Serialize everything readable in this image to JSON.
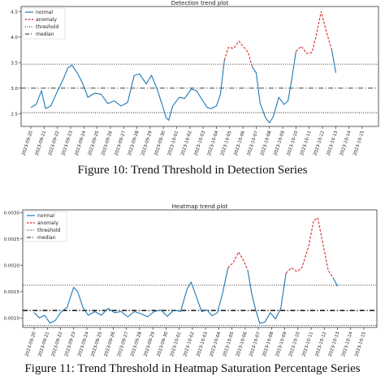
{
  "charts": [
    {
      "title": "Detection trend plot",
      "caption": "Figure 10: Trend Threshold in Detection Series",
      "legend": [
        "normal",
        "anomaly",
        "threshold",
        "median"
      ]
    },
    {
      "title": "Heatmap trend plot",
      "caption": "Figure 11: Trend Threshold in Heatmap Saturation Percentage Series",
      "legend": [
        "normal",
        "anomaly",
        "threshold",
        "median"
      ]
    }
  ],
  "colors": {
    "normal": "#1f77b4",
    "anomaly": "#d62728",
    "line": "#222222"
  },
  "chart_data": [
    {
      "type": "line",
      "title": "Detection trend plot",
      "x": [
        "2023-09-20",
        "2023-09-21",
        "2023-09-22",
        "2023-09-23",
        "2023-09-24",
        "2023-09-25",
        "2023-09-26",
        "2023-09-27",
        "2023-09-28",
        "2023-09-29",
        "2023-09-30",
        "2023-10-01",
        "2023-10-02",
        "2023-10-03",
        "2023-10-04",
        "2023-10-05",
        "2023-10-06",
        "2023-10-07",
        "2023-10-08",
        "2023-10-09",
        "2023-10-10",
        "2023-10-11",
        "2023-10-12",
        "2023-10-13",
        "2023-10-14",
        "2023-10-15"
      ],
      "ylim": [
        2.25,
        4.6
      ],
      "yticks": [
        2.5,
        3.0,
        3.5,
        4.0,
        4.5
      ],
      "ytick_labels": [
        "2.5",
        "3.0",
        "3.5",
        "4.0",
        "4.5"
      ],
      "threshold": [
        2.52,
        3.47
      ],
      "median": 3.0,
      "points": [
        [
          0.0,
          2.62
        ],
        [
          0.4,
          2.68
        ],
        [
          0.8,
          2.95
        ],
        [
          1.1,
          2.6
        ],
        [
          1.5,
          2.65
        ],
        [
          1.9,
          2.88
        ],
        [
          2.4,
          3.15
        ],
        [
          2.8,
          3.4
        ],
        [
          3.1,
          3.45
        ],
        [
          3.5,
          3.3
        ],
        [
          3.9,
          3.1
        ],
        [
          4.3,
          2.82
        ],
        [
          4.8,
          2.9
        ],
        [
          5.3,
          2.88
        ],
        [
          5.8,
          2.7
        ],
        [
          6.3,
          2.75
        ],
        [
          6.8,
          2.65
        ],
        [
          7.3,
          2.72
        ],
        [
          7.8,
          3.25
        ],
        [
          8.2,
          3.28
        ],
        [
          8.7,
          3.08
        ],
        [
          9.1,
          3.25
        ],
        [
          9.5,
          3.0
        ],
        [
          9.9,
          2.68
        ],
        [
          10.2,
          2.42
        ],
        [
          10.4,
          2.37
        ],
        [
          10.7,
          2.65
        ],
        [
          11.2,
          2.82
        ],
        [
          11.6,
          2.8
        ],
        [
          12.1,
          2.98
        ],
        [
          12.5,
          2.95
        ],
        [
          12.9,
          2.78
        ],
        [
          13.3,
          2.62
        ],
        [
          13.6,
          2.6
        ],
        [
          14.0,
          2.65
        ],
        [
          14.3,
          2.88
        ],
        [
          14.6,
          3.55
        ],
        [
          14.9,
          3.8
        ],
        [
          15.3,
          3.78
        ],
        [
          15.7,
          3.92
        ],
        [
          16.0,
          3.82
        ],
        [
          16.4,
          3.7
        ],
        [
          16.7,
          3.42
        ],
        [
          17.0,
          3.3
        ],
        [
          17.3,
          2.7
        ],
        [
          17.7,
          2.42
        ],
        [
          18.0,
          2.32
        ],
        [
          18.3,
          2.45
        ],
        [
          18.7,
          2.82
        ],
        [
          19.1,
          2.68
        ],
        [
          19.4,
          2.75
        ],
        [
          19.7,
          3.2
        ],
        [
          20.0,
          3.72
        ],
        [
          20.4,
          3.82
        ],
        [
          20.8,
          3.68
        ],
        [
          21.2,
          3.7
        ],
        [
          21.5,
          4.0
        ],
        [
          21.9,
          4.5
        ],
        [
          22.3,
          4.1
        ],
        [
          22.7,
          3.75
        ],
        [
          23.0,
          3.3
        ]
      ],
      "anomaly_ranges": [
        [
          14.6,
          16.7
        ],
        [
          20.0,
          22.7
        ]
      ]
    },
    {
      "type": "line",
      "title": "Heatmap trend plot",
      "x": [
        "2023-09-20",
        "2023-09-21",
        "2023-09-22",
        "2023-09-23",
        "2023-09-24",
        "2023-09-25",
        "2023-09-26",
        "2023-09-27",
        "2023-09-28",
        "2023-09-29",
        "2023-09-30",
        "2023-10-01",
        "2023-10-02",
        "2023-10-03",
        "2023-10-04",
        "2023-10-05",
        "2023-10-06",
        "2023-10-07",
        "2023-10-08",
        "2023-10-09",
        "2023-10-10",
        "2023-10-11",
        "2023-10-12",
        "2023-10-13",
        "2023-10-14",
        "2023-10-15"
      ],
      "ylim": [
        0.00082,
        0.00305
      ],
      "yticks": [
        0.001,
        0.0015,
        0.002,
        0.0025,
        0.003
      ],
      "ytick_labels": [
        "0.0010",
        "0.0015",
        "0.0020",
        "0.0025",
        "0.0030"
      ],
      "threshold": [
        0.00086,
        0.00162
      ],
      "median": 0.00114,
      "points": [
        [
          0.0,
          0.0011
        ],
        [
          0.4,
          0.001
        ],
        [
          0.8,
          0.00105
        ],
        [
          1.2,
          0.0009
        ],
        [
          1.6,
          0.00095
        ],
        [
          2.0,
          0.0011
        ],
        [
          2.5,
          0.0012
        ],
        [
          3.0,
          0.00158
        ],
        [
          3.3,
          0.0015
        ],
        [
          3.7,
          0.0012
        ],
        [
          4.1,
          0.00105
        ],
        [
          4.6,
          0.00112
        ],
        [
          5.1,
          0.00105
        ],
        [
          5.6,
          0.00118
        ],
        [
          6.1,
          0.0011
        ],
        [
          6.6,
          0.00112
        ],
        [
          7.1,
          0.00102
        ],
        [
          7.6,
          0.00112
        ],
        [
          8.1,
          0.00108
        ],
        [
          8.6,
          0.00102
        ],
        [
          9.1,
          0.00112
        ],
        [
          9.6,
          0.00115
        ],
        [
          10.1,
          0.00103
        ],
        [
          10.6,
          0.00115
        ],
        [
          11.1,
          0.00112
        ],
        [
          11.6,
          0.00155
        ],
        [
          11.9,
          0.00168
        ],
        [
          12.3,
          0.0014
        ],
        [
          12.7,
          0.00112
        ],
        [
          13.1,
          0.00115
        ],
        [
          13.5,
          0.00104
        ],
        [
          13.9,
          0.0011
        ],
        [
          14.3,
          0.00148
        ],
        [
          14.7,
          0.00195
        ],
        [
          15.1,
          0.00205
        ],
        [
          15.5,
          0.00225
        ],
        [
          15.9,
          0.00208
        ],
        [
          16.2,
          0.0019
        ],
        [
          16.5,
          0.00145
        ],
        [
          16.8,
          0.00115
        ],
        [
          17.1,
          0.0009
        ],
        [
          17.5,
          0.00092
        ],
        [
          17.9,
          0.0011
        ],
        [
          18.3,
          0.00098
        ],
        [
          18.7,
          0.00118
        ],
        [
          19.1,
          0.00185
        ],
        [
          19.5,
          0.00195
        ],
        [
          19.9,
          0.00188
        ],
        [
          20.3,
          0.00195
        ],
        [
          20.8,
          0.00235
        ],
        [
          21.2,
          0.00285
        ],
        [
          21.5,
          0.0029
        ],
        [
          21.9,
          0.0024
        ],
        [
          22.3,
          0.0019
        ],
        [
          22.7,
          0.00175
        ],
        [
          23.0,
          0.0016
        ]
      ],
      "anomaly_ranges": [
        [
          14.7,
          16.2
        ],
        [
          19.1,
          22.7
        ]
      ]
    }
  ]
}
